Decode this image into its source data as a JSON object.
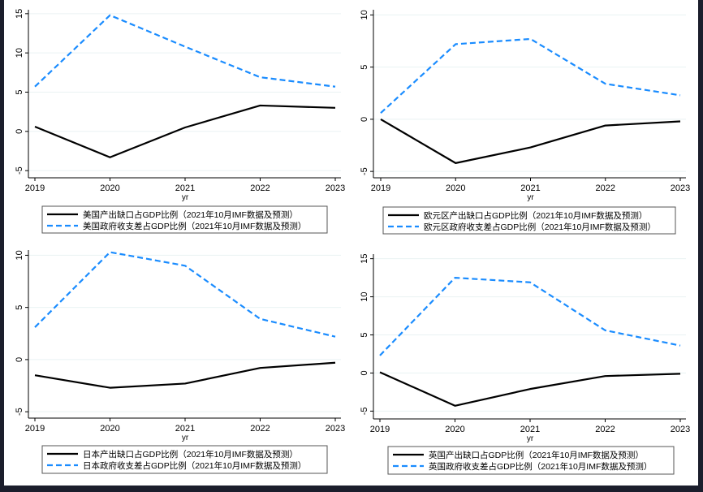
{
  "chart_data": [
    {
      "type": "line",
      "x": [
        2019,
        2020,
        2021,
        2022,
        2023
      ],
      "xlabel": "yr",
      "yticks": [
        -5,
        0,
        5,
        10,
        15
      ],
      "ylim": [
        -5.5,
        15.5
      ],
      "grid": true,
      "legend_placement": "bottom",
      "series": [
        {
          "name": "美国产出缺口占GDP比例（2021年10月IMF数据及预测）",
          "values": [
            0.6,
            -3.3,
            0.5,
            3.3,
            3.0
          ],
          "color": "#000000",
          "style": "solid"
        },
        {
          "name": "美国政府收支差占GDP比例（2021年10月IMF数据及预测）",
          "values": [
            5.7,
            14.8,
            10.8,
            6.9,
            5.7
          ],
          "color": "#1a8cff",
          "style": "dashed"
        }
      ]
    },
    {
      "type": "line",
      "x": [
        2019,
        2020,
        2021,
        2022,
        2023
      ],
      "xlabel": "yr",
      "yticks": [
        -5,
        0,
        5,
        10
      ],
      "ylim": [
        -5.3,
        10.5
      ],
      "grid": true,
      "legend_placement": "bottom",
      "series": [
        {
          "name": "欧元区产出缺口占GDP比例（2021年10月IMF数据及预测）",
          "values": [
            0.0,
            -4.2,
            -2.7,
            -0.6,
            -0.2
          ],
          "color": "#000000",
          "style": "solid"
        },
        {
          "name": "欧元区政府收支差占GDP比例（2021年10月IMF数据及预测）",
          "values": [
            0.6,
            7.2,
            7.7,
            3.4,
            2.3
          ],
          "color": "#1a8cff",
          "style": "dashed"
        }
      ]
    },
    {
      "type": "line",
      "x": [
        2019,
        2020,
        2021,
        2022,
        2023
      ],
      "xlabel": "yr",
      "yticks": [
        -5,
        0,
        5,
        10
      ],
      "ylim": [
        -5.3,
        10.5
      ],
      "grid": true,
      "legend_placement": "bottom",
      "series": [
        {
          "name": "日本产出缺口占GDP比例（2021年10月IMF数据及预测）",
          "values": [
            -1.5,
            -2.7,
            -2.3,
            -0.8,
            -0.3
          ],
          "color": "#000000",
          "style": "solid"
        },
        {
          "name": "日本政府收支差占GDP比例（2021年10月IMF数据及预测）",
          "values": [
            3.1,
            10.3,
            9.0,
            3.9,
            2.2
          ],
          "color": "#1a8cff",
          "style": "dashed"
        }
      ]
    },
    {
      "type": "line",
      "x": [
        2019,
        2020,
        2021,
        2022,
        2023
      ],
      "xlabel": "yr",
      "yticks": [
        -5,
        0,
        5,
        10,
        15
      ],
      "ylim": [
        -5.6,
        15.6
      ],
      "grid": true,
      "legend_placement": "bottom",
      "series": [
        {
          "name": "英国产出缺口占GDP比例（2021年10月IMF数据及预测）",
          "values": [
            0.1,
            -4.3,
            -2.1,
            -0.4,
            -0.1
          ],
          "color": "#000000",
          "style": "solid"
        },
        {
          "name": "英国政府收支差占GDP比例（2021年10月IMF数据及预测）",
          "values": [
            2.3,
            12.5,
            11.9,
            5.6,
            3.6
          ],
          "color": "#1a8cff",
          "style": "dashed"
        }
      ]
    }
  ]
}
